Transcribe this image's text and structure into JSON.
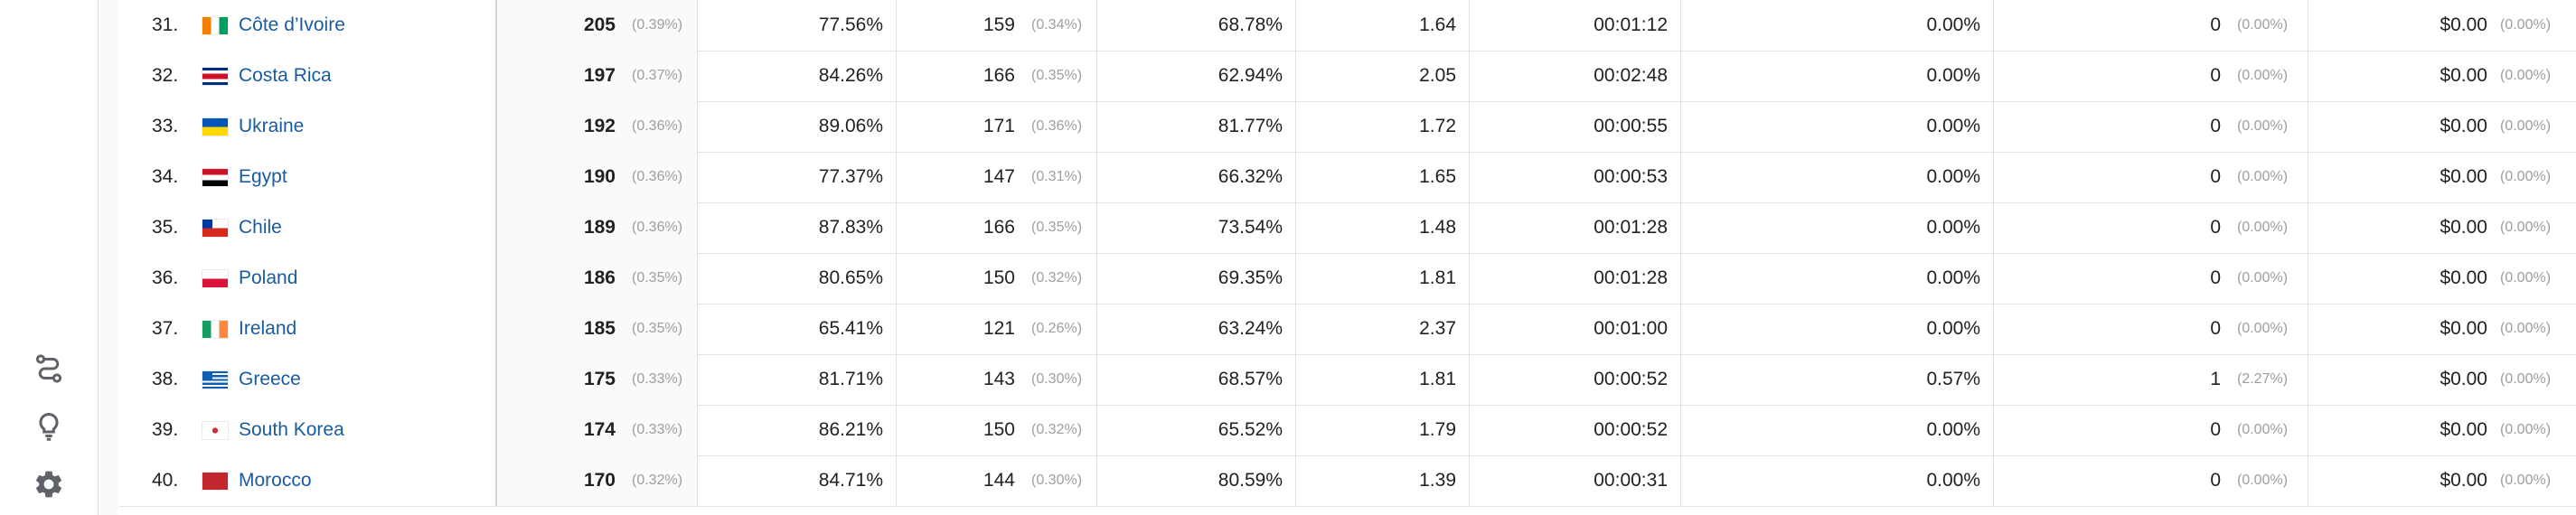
{
  "sidebar": {
    "icons": [
      {
        "name": "flow-icon",
        "label": ""
      },
      {
        "name": "lightbulb-icon",
        "label": ""
      },
      {
        "name": "gear-icon",
        "label": ""
      }
    ]
  },
  "colors": {
    "link": "#1a5b9e",
    "percent_muted": "#9e9e9e",
    "row_border": "#e5e5e5",
    "highlight_column_bg": "#fafafa"
  },
  "rows": [
    {
      "rank": "31.",
      "flag": "ci",
      "country": "Côte d’Ivoire",
      "users": "205",
      "users_pct": "(0.39%)",
      "bounce": "77.56%",
      "sessions": "159",
      "sessions_pct": "(0.34%)",
      "exp": "68.78%",
      "ppv": "1.64",
      "duration": "00:01:12",
      "conv": "0.00%",
      "goal": "0",
      "goal_pct": "(0.00%)",
      "revenue": "$0.00",
      "revenue_pct": "(0.00%)"
    },
    {
      "rank": "32.",
      "flag": "cr",
      "country": "Costa Rica",
      "users": "197",
      "users_pct": "(0.37%)",
      "bounce": "84.26%",
      "sessions": "166",
      "sessions_pct": "(0.35%)",
      "exp": "62.94%",
      "ppv": "2.05",
      "duration": "00:02:48",
      "conv": "0.00%",
      "goal": "0",
      "goal_pct": "(0.00%)",
      "revenue": "$0.00",
      "revenue_pct": "(0.00%)"
    },
    {
      "rank": "33.",
      "flag": "ua",
      "country": "Ukraine",
      "users": "192",
      "users_pct": "(0.36%)",
      "bounce": "89.06%",
      "sessions": "171",
      "sessions_pct": "(0.36%)",
      "exp": "81.77%",
      "ppv": "1.72",
      "duration": "00:00:55",
      "conv": "0.00%",
      "goal": "0",
      "goal_pct": "(0.00%)",
      "revenue": "$0.00",
      "revenue_pct": "(0.00%)"
    },
    {
      "rank": "34.",
      "flag": "eg",
      "country": "Egypt",
      "users": "190",
      "users_pct": "(0.36%)",
      "bounce": "77.37%",
      "sessions": "147",
      "sessions_pct": "(0.31%)",
      "exp": "66.32%",
      "ppv": "1.65",
      "duration": "00:00:53",
      "conv": "0.00%",
      "goal": "0",
      "goal_pct": "(0.00%)",
      "revenue": "$0.00",
      "revenue_pct": "(0.00%)"
    },
    {
      "rank": "35.",
      "flag": "cl",
      "country": "Chile",
      "users": "189",
      "users_pct": "(0.36%)",
      "bounce": "87.83%",
      "sessions": "166",
      "sessions_pct": "(0.35%)",
      "exp": "73.54%",
      "ppv": "1.48",
      "duration": "00:01:28",
      "conv": "0.00%",
      "goal": "0",
      "goal_pct": "(0.00%)",
      "revenue": "$0.00",
      "revenue_pct": "(0.00%)"
    },
    {
      "rank": "36.",
      "flag": "pl",
      "country": "Poland",
      "users": "186",
      "users_pct": "(0.35%)",
      "bounce": "80.65%",
      "sessions": "150",
      "sessions_pct": "(0.32%)",
      "exp": "69.35%",
      "ppv": "1.81",
      "duration": "00:01:28",
      "conv": "0.00%",
      "goal": "0",
      "goal_pct": "(0.00%)",
      "revenue": "$0.00",
      "revenue_pct": "(0.00%)"
    },
    {
      "rank": "37.",
      "flag": "ie",
      "country": "Ireland",
      "users": "185",
      "users_pct": "(0.35%)",
      "bounce": "65.41%",
      "sessions": "121",
      "sessions_pct": "(0.26%)",
      "exp": "63.24%",
      "ppv": "2.37",
      "duration": "00:01:00",
      "conv": "0.00%",
      "goal": "0",
      "goal_pct": "(0.00%)",
      "revenue": "$0.00",
      "revenue_pct": "(0.00%)"
    },
    {
      "rank": "38.",
      "flag": "gr",
      "country": "Greece",
      "users": "175",
      "users_pct": "(0.33%)",
      "bounce": "81.71%",
      "sessions": "143",
      "sessions_pct": "(0.30%)",
      "exp": "68.57%",
      "ppv": "1.81",
      "duration": "00:00:52",
      "conv": "0.57%",
      "goal": "1",
      "goal_pct": "(2.27%)",
      "revenue": "$0.00",
      "revenue_pct": "(0.00%)"
    },
    {
      "rank": "39.",
      "flag": "kr",
      "country": "South Korea",
      "users": "174",
      "users_pct": "(0.33%)",
      "bounce": "86.21%",
      "sessions": "150",
      "sessions_pct": "(0.32%)",
      "exp": "65.52%",
      "ppv": "1.79",
      "duration": "00:00:52",
      "conv": "0.00%",
      "goal": "0",
      "goal_pct": "(0.00%)",
      "revenue": "$0.00",
      "revenue_pct": "(0.00%)"
    },
    {
      "rank": "40.",
      "flag": "ma",
      "country": "Morocco",
      "users": "170",
      "users_pct": "(0.32%)",
      "bounce": "84.71%",
      "sessions": "144",
      "sessions_pct": "(0.30%)",
      "exp": "80.59%",
      "ppv": "1.39",
      "duration": "00:00:31",
      "conv": "0.00%",
      "goal": "0",
      "goal_pct": "(0.00%)",
      "revenue": "$0.00",
      "revenue_pct": "(0.00%)"
    }
  ]
}
